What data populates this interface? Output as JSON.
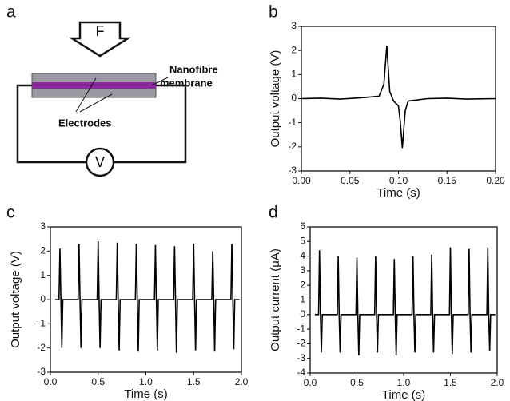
{
  "diagram": {
    "panel": "a",
    "force": "F",
    "membrane_label": [
      "Nanofibre",
      "membrane"
    ],
    "electrodes_label": "Electrodes",
    "meter": "V"
  },
  "chart_data": [
    {
      "type": "line",
      "panel": "b",
      "xlabel": "Time (s)",
      "ylabel": "Output voltage (V)",
      "color": "#000000",
      "x": [
        0,
        0.02,
        0.04,
        0.06,
        0.08,
        0.085,
        0.088,
        0.091,
        0.095,
        0.1,
        0.102,
        0.104,
        0.107,
        0.11,
        0.13,
        0.15,
        0.17,
        0.2
      ],
      "values": [
        0,
        0.02,
        -0.02,
        0.03,
        0.1,
        0.6,
        2.2,
        0.3,
        -0.1,
        -0.3,
        -1.0,
        -2.05,
        -0.5,
        -0.1,
        0,
        0.02,
        -0.02,
        0
      ],
      "xlim": [
        0,
        0.2
      ],
      "xticks": [
        {
          "value": 0,
          "label": "0.00"
        },
        0.05,
        {
          "value": 0.1,
          "label": "0.10"
        },
        0.15,
        {
          "value": 0.2,
          "label": "0.20"
        }
      ],
      "ylim": [
        -3,
        3
      ],
      "yticks": [
        -3,
        -2,
        -1,
        0,
        1,
        2,
        3
      ]
    },
    {
      "type": "line",
      "panel": "c",
      "xlabel": "Time (s)",
      "ylabel": "Output voltage (V)",
      "color": "#000000",
      "x": [
        0.05,
        0.09,
        0.1,
        0.11,
        0.12,
        0.13,
        0.29,
        0.3,
        0.31,
        0.32,
        0.33,
        0.49,
        0.5,
        0.51,
        0.52,
        0.53,
        0.69,
        0.7,
        0.71,
        0.72,
        0.73,
        0.89,
        0.9,
        0.91,
        0.92,
        0.93,
        1.09,
        1.1,
        1.11,
        1.12,
        1.13,
        1.29,
        1.3,
        1.31,
        1.32,
        1.33,
        1.49,
        1.5,
        1.51,
        1.52,
        1.53,
        1.69,
        1.7,
        1.71,
        1.72,
        1.73,
        1.89,
        1.9,
        1.91,
        1.92,
        1.93,
        1.98
      ],
      "values": [
        0,
        0,
        2.1,
        0,
        -2.0,
        0,
        0,
        2.3,
        0,
        -2.0,
        0,
        0,
        2.4,
        0,
        -2.0,
        0,
        0,
        2.35,
        0,
        -2.1,
        0,
        0,
        2.3,
        0,
        -2.15,
        0,
        0,
        2.25,
        0,
        -2.1,
        0,
        0,
        2.2,
        0,
        -2.2,
        0,
        0,
        2.3,
        0,
        -2.1,
        0,
        0,
        2.0,
        0,
        -2.15,
        0,
        0,
        2.3,
        0,
        -2.05,
        0,
        0
      ],
      "xlim": [
        0,
        2
      ],
      "xticks": [
        {
          "value": 0,
          "label": "0.0"
        },
        0.5,
        {
          "value": 1,
          "label": "1.0"
        },
        1.5,
        {
          "value": 2,
          "label": "2.0"
        }
      ],
      "ylim": [
        -3,
        3
      ],
      "yticks": [
        -3,
        -2,
        -1,
        0,
        1,
        2,
        3
      ]
    },
    {
      "type": "line",
      "panel": "d",
      "xlabel": "Time (s)",
      "ylabel": "Output current (μA)",
      "color": "#000000",
      "x": [
        0.05,
        0.09,
        0.1,
        0.11,
        0.12,
        0.13,
        0.29,
        0.3,
        0.31,
        0.32,
        0.33,
        0.49,
        0.5,
        0.51,
        0.52,
        0.53,
        0.69,
        0.7,
        0.71,
        0.72,
        0.73,
        0.89,
        0.9,
        0.91,
        0.92,
        0.93,
        1.09,
        1.1,
        1.11,
        1.12,
        1.13,
        1.29,
        1.3,
        1.31,
        1.32,
        1.33,
        1.49,
        1.5,
        1.51,
        1.52,
        1.53,
        1.69,
        1.7,
        1.71,
        1.72,
        1.73,
        1.89,
        1.9,
        1.91,
        1.92,
        1.93,
        1.98
      ],
      "values": [
        0,
        0,
        4.4,
        0,
        -2.6,
        0,
        0,
        4.0,
        0,
        -2.6,
        0,
        0,
        3.9,
        0,
        -2.8,
        0,
        0,
        4.0,
        0,
        -2.6,
        0,
        0,
        3.8,
        0,
        -2.8,
        0,
        0,
        4.0,
        0,
        -2.6,
        0,
        0,
        4.1,
        0,
        -2.6,
        0,
        0,
        4.6,
        0,
        -2.7,
        0,
        0,
        4.5,
        0,
        -2.6,
        0,
        0,
        4.6,
        0,
        -2.5,
        0,
        0
      ],
      "xlim": [
        0,
        2
      ],
      "xticks": [
        {
          "value": 0,
          "label": "0.0"
        },
        0.5,
        {
          "value": 1,
          "label": "1.0"
        },
        1.5,
        {
          "value": 2,
          "label": "2.0"
        }
      ],
      "ylim": [
        -4,
        6
      ],
      "yticks": [
        -4,
        -3,
        -2,
        -1,
        0,
        1,
        2,
        3,
        4,
        5,
        6
      ]
    }
  ]
}
